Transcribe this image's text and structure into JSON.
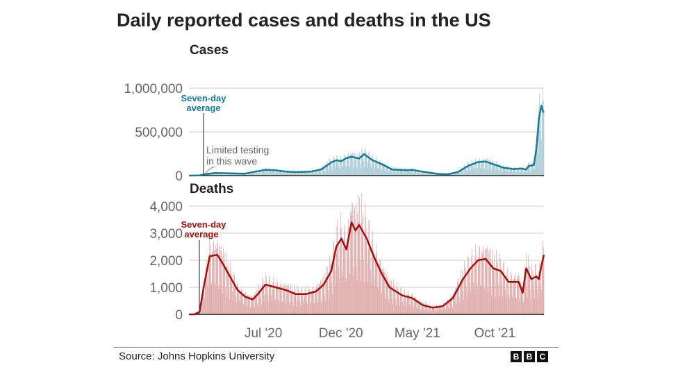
{
  "chart_data": {
    "title": "Daily reported cases and deaths in the US",
    "source": "Source: Johns Hopkins University",
    "logo": [
      "B",
      "B",
      "C"
    ],
    "x_unit": "days since 2020-03-01",
    "xlim": [
      -11,
      690
    ],
    "x_ticks": [
      {
        "label": "Jul '20",
        "value": 136
      },
      {
        "label": "Dec '20",
        "value": 289
      },
      {
        "label": "May '21",
        "value": 440
      },
      {
        "label": "Oct '21",
        "value": 593
      }
    ],
    "weekday_factors": [
      1.05,
      1.25,
      1.2,
      1.1,
      1.15,
      0.6,
      0.45
    ],
    "panels": [
      {
        "type": "bar+line",
        "name": "Cases",
        "ylim": [
          0,
          1000000
        ],
        "y_ticks": [
          {
            "label": "0",
            "value": 0
          },
          {
            "label": "500,000",
            "value": 500000
          },
          {
            "label": "1,000,000",
            "value": 1000000
          }
        ],
        "bar_color": "#a9cad6",
        "line_color": "#167a96",
        "annotation": "Seven-day average",
        "annotation_lines": [
          "Seven-day",
          "average"
        ],
        "note_lines": [
          "Limited testing",
          "in this wave"
        ],
        "seven_day_average": [
          [
            -11,
            0
          ],
          [
            10,
            2000
          ],
          [
            20,
            15000
          ],
          [
            40,
            30000
          ],
          [
            70,
            25000
          ],
          [
            100,
            22000
          ],
          [
            120,
            45000
          ],
          [
            140,
            65000
          ],
          [
            160,
            60000
          ],
          [
            180,
            45000
          ],
          [
            200,
            40000
          ],
          [
            230,
            45000
          ],
          [
            250,
            70000
          ],
          [
            270,
            150000
          ],
          [
            280,
            175000
          ],
          [
            290,
            165000
          ],
          [
            300,
            200000
          ],
          [
            310,
            215000
          ],
          [
            325,
            195000
          ],
          [
            335,
            245000
          ],
          [
            350,
            180000
          ],
          [
            370,
            130000
          ],
          [
            390,
            70000
          ],
          [
            420,
            60000
          ],
          [
            430,
            65000
          ],
          [
            450,
            45000
          ],
          [
            480,
            20000
          ],
          [
            500,
            15000
          ],
          [
            520,
            40000
          ],
          [
            540,
            110000
          ],
          [
            560,
            155000
          ],
          [
            575,
            160000
          ],
          [
            590,
            130000
          ],
          [
            610,
            90000
          ],
          [
            630,
            75000
          ],
          [
            645,
            80000
          ],
          [
            655,
            70000
          ],
          [
            660,
            110000
          ],
          [
            670,
            120000
          ],
          [
            675,
            300000
          ],
          [
            680,
            650000
          ],
          [
            685,
            800000
          ],
          [
            688,
            740000
          ],
          [
            690,
            720000
          ]
        ]
      },
      {
        "type": "bar+line",
        "name": "Deaths",
        "ylim": [
          0,
          4000
        ],
        "y_ticks": [
          {
            "label": "0",
            "value": 0
          },
          {
            "label": "1,000",
            "value": 1000
          },
          {
            "label": "2,000",
            "value": 2000
          },
          {
            "label": "3,000",
            "value": 3000
          },
          {
            "label": "4,000",
            "value": 4000
          }
        ],
        "bar_color": "#dfa9a9",
        "line_color": "#a30f0f",
        "annotation": "Seven-day average",
        "annotation_lines": [
          "Seven-day",
          "average"
        ],
        "seven_day_average": [
          [
            -11,
            0
          ],
          [
            0,
            0
          ],
          [
            10,
            100
          ],
          [
            20,
            1200
          ],
          [
            30,
            2150
          ],
          [
            45,
            2200
          ],
          [
            55,
            1900
          ],
          [
            70,
            1400
          ],
          [
            85,
            900
          ],
          [
            100,
            650
          ],
          [
            115,
            550
          ],
          [
            125,
            750
          ],
          [
            140,
            1100
          ],
          [
            160,
            1000
          ],
          [
            180,
            900
          ],
          [
            200,
            750
          ],
          [
            220,
            750
          ],
          [
            240,
            850
          ],
          [
            255,
            1100
          ],
          [
            270,
            1600
          ],
          [
            280,
            2500
          ],
          [
            290,
            2800
          ],
          [
            300,
            2400
          ],
          [
            310,
            3400
          ],
          [
            318,
            3100
          ],
          [
            325,
            3300
          ],
          [
            340,
            2800
          ],
          [
            355,
            2100
          ],
          [
            370,
            1500
          ],
          [
            385,
            1000
          ],
          [
            410,
            700
          ],
          [
            430,
            600
          ],
          [
            450,
            350
          ],
          [
            470,
            250
          ],
          [
            490,
            300
          ],
          [
            510,
            600
          ],
          [
            530,
            1300
          ],
          [
            545,
            1700
          ],
          [
            560,
            2000
          ],
          [
            575,
            2050
          ],
          [
            590,
            1700
          ],
          [
            605,
            1600
          ],
          [
            620,
            1200
          ],
          [
            640,
            1200
          ],
          [
            648,
            800
          ],
          [
            655,
            1700
          ],
          [
            665,
            1300
          ],
          [
            675,
            1400
          ],
          [
            680,
            1300
          ],
          [
            685,
            1800
          ],
          [
            690,
            2200
          ]
        ]
      }
    ]
  }
}
